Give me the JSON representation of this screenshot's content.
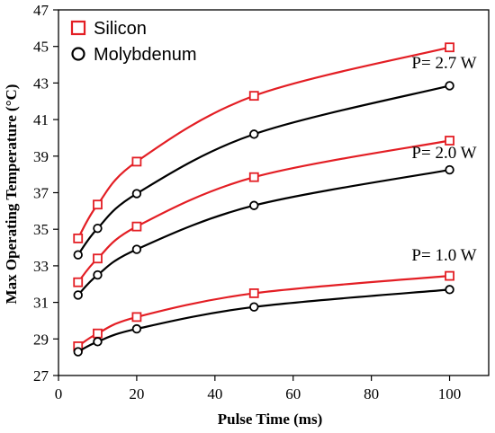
{
  "chart_data": {
    "type": "line",
    "xlabel": "Pulse Time (ms)",
    "ylabel": "Max Operating Temperature (°C)",
    "xlim": [
      0,
      110
    ],
    "ylim": [
      27,
      47
    ],
    "x_ticks": [
      0,
      20,
      40,
      60,
      80,
      100
    ],
    "y_ticks": [
      27,
      29,
      31,
      33,
      35,
      37,
      39,
      41,
      43,
      45,
      47
    ],
    "grid": false,
    "legend_position": "top-left",
    "legend": [
      {
        "label": "Silicon",
        "marker": "square",
        "color": "#e31e24"
      },
      {
        "label": "Molybdenum",
        "marker": "circle",
        "color": "#000000"
      }
    ],
    "series": [
      {
        "material": "Silicon",
        "power": "2.7 W",
        "color": "#e31e24",
        "marker": "square",
        "x": [
          5,
          10,
          20,
          50,
          100
        ],
        "y": [
          34.5,
          36.35,
          38.7,
          42.3,
          44.95
        ]
      },
      {
        "material": "Molybdenum",
        "power": "2.7 W",
        "color": "#000000",
        "marker": "circle",
        "x": [
          5,
          10,
          20,
          50,
          100
        ],
        "y": [
          33.6,
          35.05,
          36.95,
          40.2,
          42.85
        ]
      },
      {
        "material": "Silicon",
        "power": "2.0 W",
        "color": "#e31e24",
        "marker": "square",
        "x": [
          5,
          10,
          20,
          50,
          100
        ],
        "y": [
          32.1,
          33.4,
          35.15,
          37.85,
          39.85
        ]
      },
      {
        "material": "Molybdenum",
        "power": "2.0 W",
        "color": "#000000",
        "marker": "circle",
        "x": [
          5,
          10,
          20,
          50,
          100
        ],
        "y": [
          31.4,
          32.5,
          33.9,
          36.3,
          38.25
        ]
      },
      {
        "material": "Silicon",
        "power": "1.0 W",
        "color": "#e31e24",
        "marker": "square",
        "x": [
          5,
          10,
          20,
          50,
          100
        ],
        "y": [
          28.6,
          29.3,
          30.2,
          31.5,
          32.45
        ]
      },
      {
        "material": "Molybdenum",
        "power": "1.0 W",
        "color": "#000000",
        "marker": "circle",
        "x": [
          5,
          10,
          20,
          50,
          100
        ],
        "y": [
          28.3,
          28.85,
          29.55,
          30.75,
          31.7
        ]
      }
    ],
    "annotations": [
      {
        "text": "P= 2.7 W",
        "x": 100,
        "y": 43.8
      },
      {
        "text": "P= 2.0 W",
        "x": 100,
        "y": 38.9
      },
      {
        "text": "P= 1.0 W",
        "x": 100,
        "y": 33.3
      }
    ]
  }
}
